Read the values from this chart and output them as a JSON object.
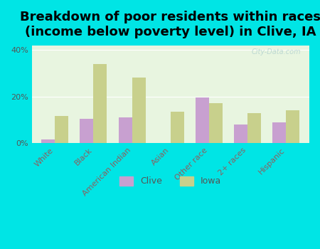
{
  "title": "Breakdown of poor residents within races\n(income below poverty level) in Clive, IA",
  "categories": [
    "White",
    "Black",
    "American Indian",
    "Asian",
    "Other race",
    "2+ races",
    "Hispanic"
  ],
  "clive_values": [
    1.5,
    10.5,
    11.0,
    0,
    19.5,
    8.0,
    9.0
  ],
  "iowa_values": [
    11.5,
    34.0,
    28.0,
    13.5,
    17.0,
    13.0,
    14.0
  ],
  "clive_color": "#c8a0d0",
  "iowa_color": "#c8d08c",
  "background_color": "#00e5e5",
  "plot_bg_start": "#e8f5e0",
  "plot_bg_end": "#ffffff",
  "ylabel_ticks": [
    "0%",
    "20%",
    "40%"
  ],
  "ytick_vals": [
    0,
    20,
    40
  ],
  "ylim": [
    0,
    42
  ],
  "bar_width": 0.35,
  "title_fontsize": 13,
  "tick_fontsize": 8,
  "legend_fontsize": 9,
  "watermark": "City-Data.com"
}
